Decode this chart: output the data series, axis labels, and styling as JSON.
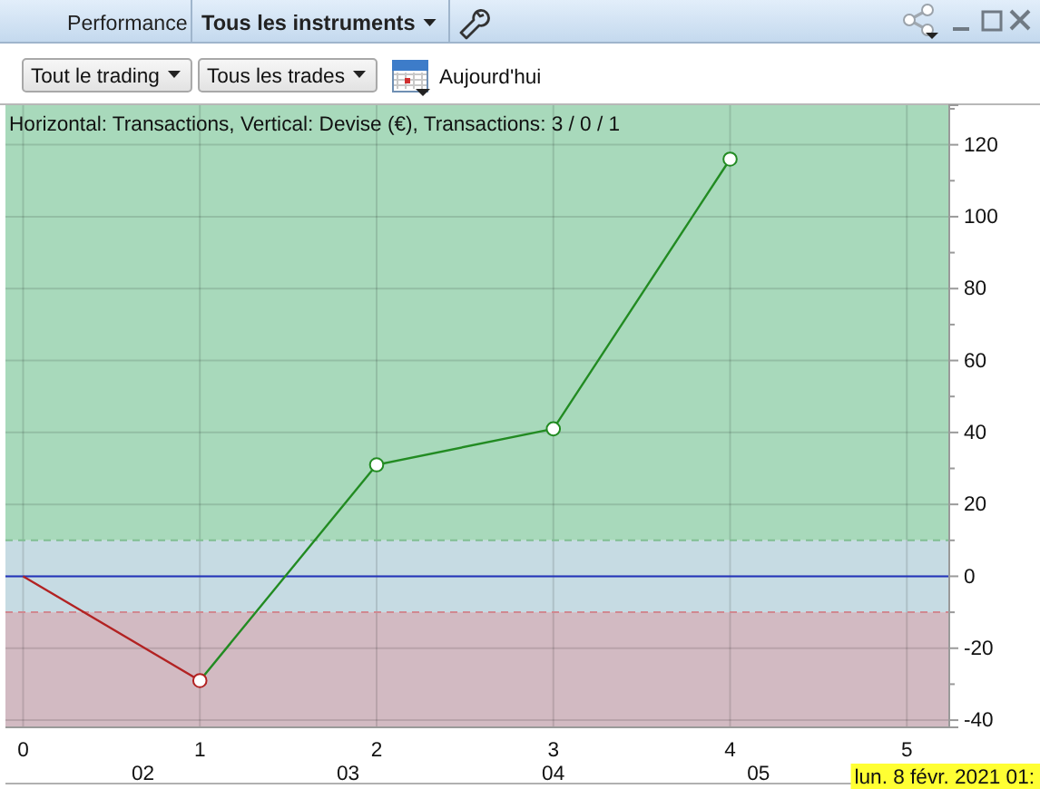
{
  "chart_data": {
    "type": "line",
    "title": "Performance",
    "subtitle": "Horizontal: Transactions, Vertical: Devise (€), Transactions: 3 / 0 / 1",
    "annotations": [
      "Tous les instruments",
      "Tout le trading",
      "Tous les trades",
      "Aujourd'hui",
      "lun. 8 févr. 2021 01:"
    ],
    "series": [
      {
        "color": "#b22222",
        "x": [
          0,
          1
        ],
        "values": [
          0,
          -29
        ]
      },
      {
        "color": "#228b22",
        "x": [
          1,
          2,
          3,
          4
        ],
        "values": [
          -29,
          31,
          41,
          116
        ]
      },
      {
        "type": "scatter",
        "marker": "circle",
        "colors": [
          "#b22222",
          "#228b22",
          "#228b22",
          "#228b22"
        ],
        "x": [
          1,
          2,
          3,
          4
        ],
        "values": [
          -29,
          31,
          41,
          116
        ]
      }
    ],
    "xlim": [
      -0.1,
      5.24
    ],
    "xticks": [
      0,
      1,
      2,
      3,
      4,
      5
    ],
    "x2lim": [
      1.33,
      5.93
    ],
    "x2ticks": [
      {
        "value": 2,
        "label": "02"
      },
      {
        "value": 3,
        "label": "03"
      },
      {
        "value": 4,
        "label": "04"
      },
      {
        "value": 5,
        "label": "05"
      }
    ],
    "ylim": [
      -42,
      131
    ],
    "yticks": [
      -40,
      {
        "value": -30,
        "label": null
      },
      -20,
      {
        "value": -10,
        "label": null
      },
      0,
      {
        "value": 10,
        "label": null
      },
      20,
      {
        "value": 30,
        "label": null
      },
      40,
      {
        "value": 50,
        "label": null
      },
      60,
      {
        "value": 70,
        "label": null
      },
      80,
      {
        "value": 90,
        "label": null
      },
      100,
      {
        "value": 110,
        "label": null
      },
      120,
      {
        "value": 130,
        "label": null
      }
    ],
    "grid": true,
    "bands": [
      {
        "axis": "y",
        "from": 10,
        "to": 131,
        "color": "#a8d9bb"
      },
      {
        "axis": "y",
        "from": -10,
        "to": 10,
        "color": "#c6dbe3"
      },
      {
        "axis": "y",
        "from": -42,
        "to": -10,
        "color": "#d2bac2"
      }
    ],
    "ref_lines": [
      {
        "axis": "y",
        "value": 10,
        "color": "#80bf92",
        "line_style": "dashed"
      },
      {
        "axis": "y",
        "value": -10,
        "color": "#d08890",
        "line_style": "dashed"
      },
      {
        "axis": "y",
        "value": 0,
        "color": "#2233bb"
      }
    ]
  }
}
